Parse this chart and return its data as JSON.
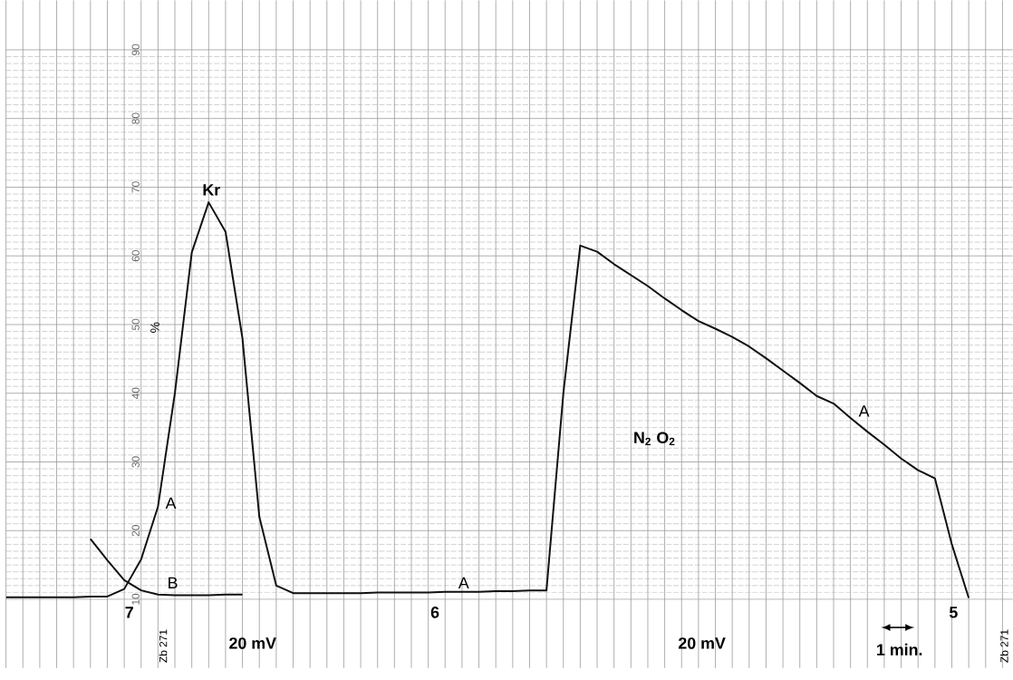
{
  "chart_data": {
    "type": "line",
    "ylabel": "%",
    "ylim": [
      0,
      97.2
    ],
    "categories": [
      null,
      null,
      null,
      null,
      null,
      null,
      null,
      null,
      null,
      null,
      null,
      null,
      null,
      null,
      null,
      null,
      null,
      null,
      null,
      null,
      null,
      null,
      null,
      null,
      null,
      null,
      null,
      null,
      null,
      null,
      null,
      null,
      null,
      null,
      null,
      null,
      null,
      null,
      null,
      null,
      null,
      null,
      null,
      null,
      null,
      null,
      null,
      null,
      null,
      null,
      null,
      null,
      null,
      null,
      null,
      null,
      null,
      null,
      null,
      null
    ],
    "yticks": [
      10,
      20,
      30,
      40,
      50,
      60,
      70,
      80,
      90
    ],
    "tick_labels": "y",
    "grid": true,
    "marker": "none",
    "line_style": "solid",
    "series": [
      {
        "color": "#111111",
        "values": [
          10.3,
          10.3,
          10.3,
          10.3,
          10.3,
          10.4,
          10.4,
          11.5,
          15.8,
          23.5,
          40,
          60.5,
          67.8,
          63.5,
          48,
          22,
          12,
          10.9,
          10.9,
          10.9,
          10.9,
          10.9,
          11.0,
          11.0,
          11.0,
          11.0,
          11.1,
          11.1,
          11.1,
          11.2,
          11.2,
          11.3,
          11.3,
          40,
          61.5,
          60.6,
          58.8,
          57.2,
          55.6,
          53.8,
          52.1,
          50.5,
          49.4,
          48.2,
          46.8,
          45.1,
          43.3,
          41.5,
          39.6,
          38.5,
          36.4,
          34.4,
          32.5,
          30.5,
          28.8,
          27.6,
          18,
          10.2,
          null,
          null
        ]
      },
      {
        "color": "#111111",
        "values": [
          null,
          null,
          null,
          null,
          null,
          18.8,
          15.7,
          12.8,
          11.3,
          10.7,
          10.6,
          10.6,
          10.6,
          10.7,
          10.7,
          null,
          null,
          null,
          null,
          null,
          null,
          null,
          null,
          null,
          null,
          null,
          null,
          null,
          null,
          null,
          null,
          null,
          null,
          null,
          null,
          null,
          null,
          null,
          null,
          null,
          null,
          null,
          null,
          null,
          null,
          null,
          null,
          null,
          null,
          null,
          null,
          null,
          null,
          null,
          null,
          null,
          null,
          null,
          null,
          null
        ]
      }
    ],
    "annotations": [
      "Kr",
      "A",
      "B",
      "A",
      "A",
      "N$_{2}$ O$_{2}$",
      "20 mV",
      "20 mV",
      "Zb 271",
      "Zb 271",
      "1 min.",
      "7",
      "6",
      "5"
    ]
  }
}
